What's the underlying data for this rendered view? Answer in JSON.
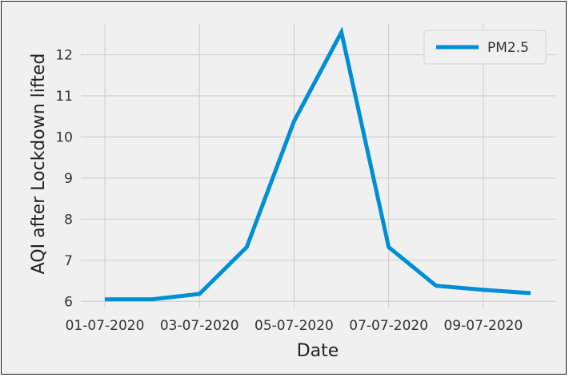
{
  "chart_data": {
    "type": "line",
    "title": "",
    "xlabel": "Date",
    "ylabel": "AQI after Lockdown lifted",
    "x": [
      "01-07-2020",
      "02-07-2020",
      "03-07-2020",
      "04-07-2020",
      "05-07-2020",
      "06-07-2020",
      "07-07-2020",
      "08-07-2020",
      "09-07-2020",
      "10-07-2020"
    ],
    "xticks": [
      "01-07-2020",
      "03-07-2020",
      "05-07-2020",
      "07-07-2020",
      "09-07-2020"
    ],
    "yticks": [
      6,
      7,
      8,
      9,
      10,
      11,
      12
    ],
    "ylim": [
      5.85,
      12.75
    ],
    "series": [
      {
        "name": "PM2.5",
        "color": "#008fd5",
        "values": [
          6.05,
          6.05,
          6.18,
          7.32,
          10.38,
          12.55,
          7.32,
          6.38,
          6.28,
          6.2
        ]
      }
    ],
    "grid": true,
    "legend_position": "top-right",
    "style": "fivethirtyeight"
  }
}
